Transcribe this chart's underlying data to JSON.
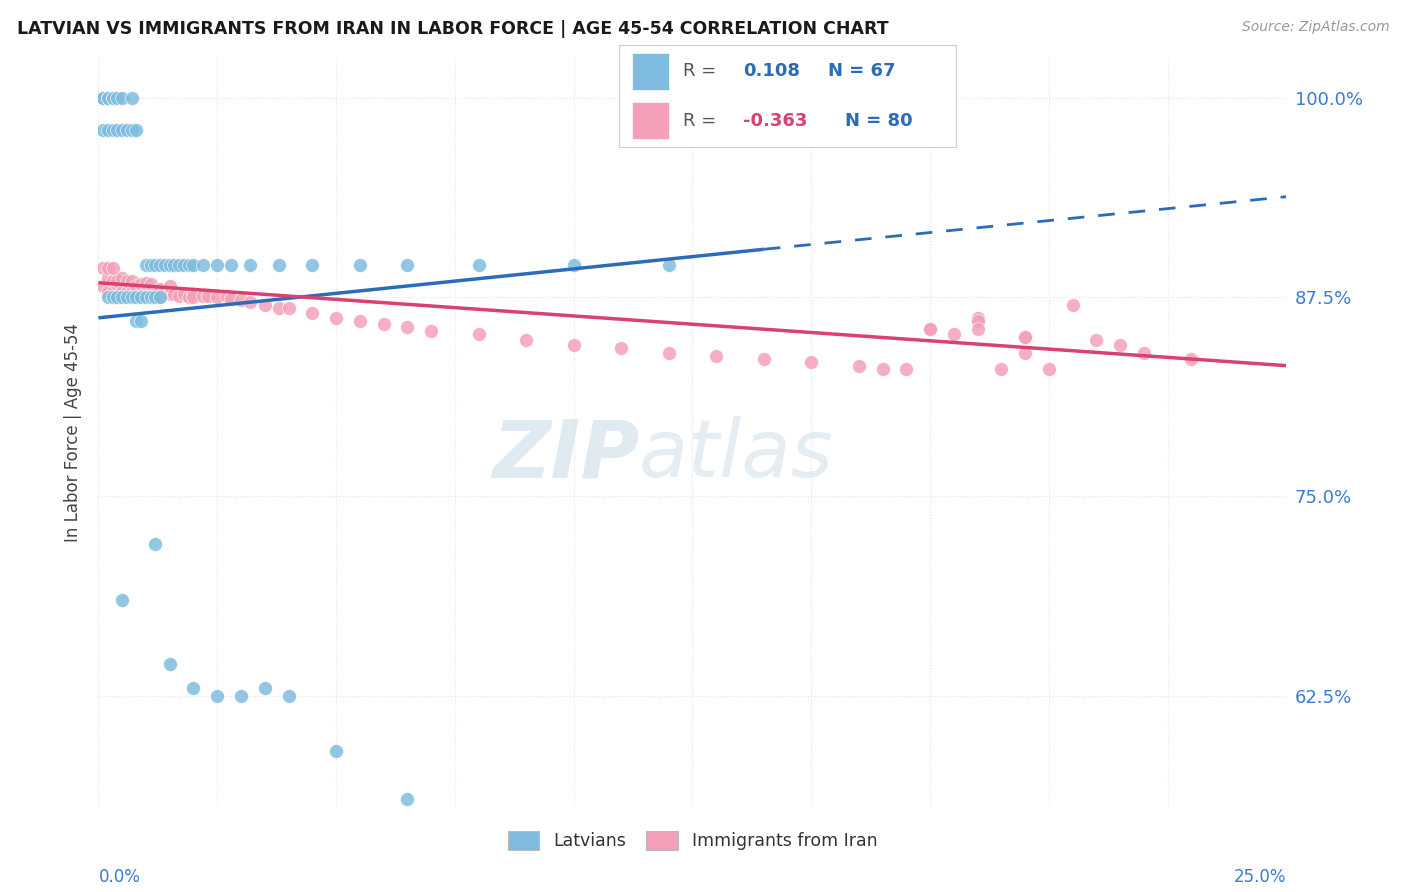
{
  "title": "LATVIAN VS IMMIGRANTS FROM IRAN IN LABOR FORCE | AGE 45-54 CORRELATION CHART",
  "source": "Source: ZipAtlas.com",
  "ylabel": "In Labor Force | Age 45-54",
  "xmin": 0.0,
  "xmax": 0.25,
  "ymin": 0.555,
  "ymax": 1.025,
  "ytick_values": [
    0.625,
    0.75,
    0.875,
    1.0
  ],
  "ytick_labels": [
    "62.5%",
    "75.0%",
    "87.5%",
    "100.0%"
  ],
  "R_latvian": 0.108,
  "N_latvian": 67,
  "R_iran": -0.363,
  "N_iran": 80,
  "latvian_color": "#7fbcdf",
  "iran_color": "#f4a0b8",
  "latvian_line_color": "#2b6cb8",
  "iran_line_color": "#d9416e",
  "axis_label_color": "#3a7bd5",
  "title_color": "#1a1a1a",
  "grid_color": "#dde5ef",
  "watermark_color": "#ccdce8",
  "legend_R_blue": "#2b6cb8",
  "legend_R_pink": "#d9416e",
  "lat_line_x0": 0.0,
  "lat_line_y0": 0.862,
  "lat_line_x1": 0.14,
  "lat_line_y1": 0.905,
  "lat_line_x2": 0.25,
  "lat_line_y2": 0.938,
  "iran_line_x0": 0.0,
  "iran_line_y0": 0.884,
  "iran_line_x1": 0.25,
  "iran_line_y1": 0.832,
  "lat_x": [
    0.001,
    0.001,
    0.001,
    0.001,
    0.001,
    0.001,
    0.002,
    0.002,
    0.002,
    0.002,
    0.002,
    0.003,
    0.003,
    0.003,
    0.003,
    0.004,
    0.004,
    0.004,
    0.005,
    0.005,
    0.005,
    0.006,
    0.006,
    0.007,
    0.007,
    0.007,
    0.008,
    0.008,
    0.008,
    0.009,
    0.009,
    0.01,
    0.01,
    0.011,
    0.011,
    0.012,
    0.012,
    0.013,
    0.013,
    0.014,
    0.015,
    0.016,
    0.017,
    0.018,
    0.019,
    0.02,
    0.022,
    0.025,
    0.028,
    0.032,
    0.038,
    0.045,
    0.055,
    0.065,
    0.08,
    0.1,
    0.12,
    0.005,
    0.012,
    0.015,
    0.02,
    0.025,
    0.03,
    0.035,
    0.04,
    0.05,
    0.065
  ],
  "lat_y": [
    1.0,
    1.0,
    1.0,
    1.0,
    1.0,
    0.98,
    1.0,
    1.0,
    1.0,
    0.98,
    0.875,
    1.0,
    1.0,
    0.98,
    0.875,
    1.0,
    0.98,
    0.875,
    1.0,
    0.98,
    0.875,
    0.98,
    0.875,
    1.0,
    0.98,
    0.875,
    0.98,
    0.875,
    0.86,
    0.875,
    0.86,
    0.895,
    0.875,
    0.895,
    0.875,
    0.895,
    0.875,
    0.895,
    0.875,
    0.895,
    0.895,
    0.895,
    0.895,
    0.895,
    0.895,
    0.895,
    0.895,
    0.895,
    0.895,
    0.895,
    0.895,
    0.895,
    0.895,
    0.895,
    0.895,
    0.895,
    0.895,
    0.685,
    0.72,
    0.645,
    0.63,
    0.625,
    0.625,
    0.63,
    0.625,
    0.59,
    0.56
  ],
  "iran_x": [
    0.001,
    0.001,
    0.002,
    0.002,
    0.002,
    0.003,
    0.003,
    0.003,
    0.004,
    0.004,
    0.004,
    0.005,
    0.005,
    0.006,
    0.006,
    0.007,
    0.007,
    0.008,
    0.008,
    0.009,
    0.009,
    0.01,
    0.01,
    0.011,
    0.011,
    0.012,
    0.013,
    0.013,
    0.014,
    0.015,
    0.015,
    0.016,
    0.017,
    0.018,
    0.019,
    0.02,
    0.02,
    0.022,
    0.023,
    0.025,
    0.027,
    0.028,
    0.03,
    0.032,
    0.035,
    0.038,
    0.04,
    0.045,
    0.05,
    0.055,
    0.06,
    0.065,
    0.07,
    0.08,
    0.09,
    0.1,
    0.11,
    0.12,
    0.13,
    0.14,
    0.15,
    0.16,
    0.17,
    0.18,
    0.19,
    0.2,
    0.21,
    0.22,
    0.23,
    0.205,
    0.175,
    0.185,
    0.195,
    0.215,
    0.185,
    0.165,
    0.195,
    0.175,
    0.185,
    0.195
  ],
  "iran_y": [
    0.893,
    0.882,
    0.887,
    0.878,
    0.893,
    0.885,
    0.878,
    0.893,
    0.883,
    0.875,
    0.885,
    0.878,
    0.887,
    0.878,
    0.885,
    0.878,
    0.885,
    0.878,
    0.882,
    0.877,
    0.883,
    0.878,
    0.884,
    0.877,
    0.883,
    0.877,
    0.88,
    0.875,
    0.879,
    0.877,
    0.882,
    0.877,
    0.876,
    0.877,
    0.875,
    0.877,
    0.875,
    0.876,
    0.876,
    0.875,
    0.876,
    0.874,
    0.873,
    0.872,
    0.87,
    0.868,
    0.868,
    0.865,
    0.862,
    0.86,
    0.858,
    0.856,
    0.854,
    0.852,
    0.848,
    0.845,
    0.843,
    0.84,
    0.838,
    0.836,
    0.834,
    0.832,
    0.83,
    0.852,
    0.83,
    0.83,
    0.848,
    0.84,
    0.836,
    0.87,
    0.855,
    0.862,
    0.85,
    0.845,
    0.86,
    0.83,
    0.85,
    0.855,
    0.855,
    0.84
  ]
}
